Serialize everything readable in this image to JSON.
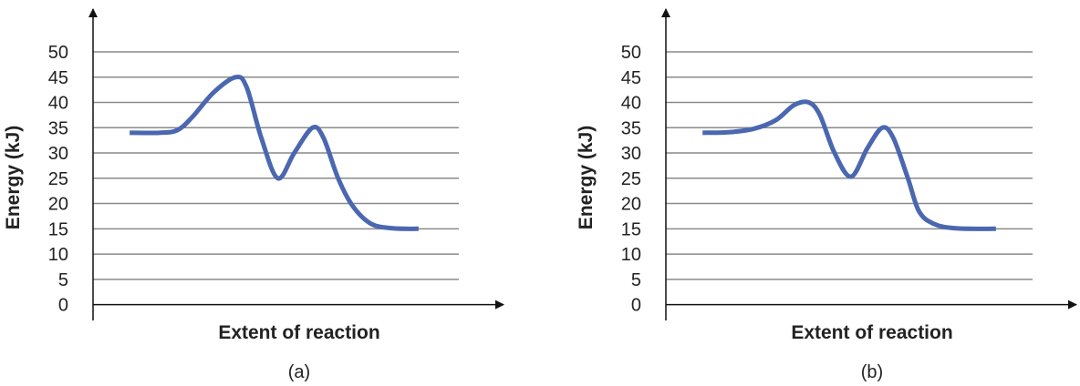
{
  "chart_data": [
    {
      "type": "line",
      "panel_label": "(a)",
      "xlabel": "Extent of reaction",
      "ylabel": "Energy (kJ)",
      "ylim": [
        0,
        50
      ],
      "xlim": [
        0,
        100
      ],
      "yticks": [
        "0",
        "5",
        "10",
        "15",
        "20",
        "25",
        "30",
        "35",
        "40",
        "45",
        "50"
      ],
      "grid": true,
      "color": "#4a67b0",
      "x": [
        10,
        18,
        23,
        27,
        33,
        39,
        42,
        46,
        50.5,
        55,
        60,
        63,
        67,
        71,
        76,
        82,
        89
      ],
      "y": [
        34,
        34,
        34.5,
        37,
        42,
        45,
        43,
        33,
        25,
        30,
        35,
        33,
        25,
        19.5,
        16,
        15.1,
        15
      ]
    },
    {
      "type": "line",
      "panel_label": "(b)",
      "xlabel": "Extent of reaction",
      "ylabel": "Energy (kJ)",
      "ylim": [
        0,
        50
      ],
      "xlim": [
        0,
        100
      ],
      "yticks": [
        "0",
        "5",
        "10",
        "15",
        "20",
        "25",
        "30",
        "35",
        "40",
        "45",
        "50"
      ],
      "grid": true,
      "color": "#4a67b0",
      "x": [
        10,
        17,
        24,
        30,
        35,
        39,
        42,
        46,
        50.5,
        55,
        59,
        62,
        66,
        69,
        73,
        79,
        90
      ],
      "y": [
        34,
        34.1,
        34.8,
        36.5,
        39.5,
        40,
        37.5,
        30,
        25.3,
        31,
        35,
        33,
        25,
        18.5,
        16,
        15.1,
        15
      ]
    }
  ]
}
